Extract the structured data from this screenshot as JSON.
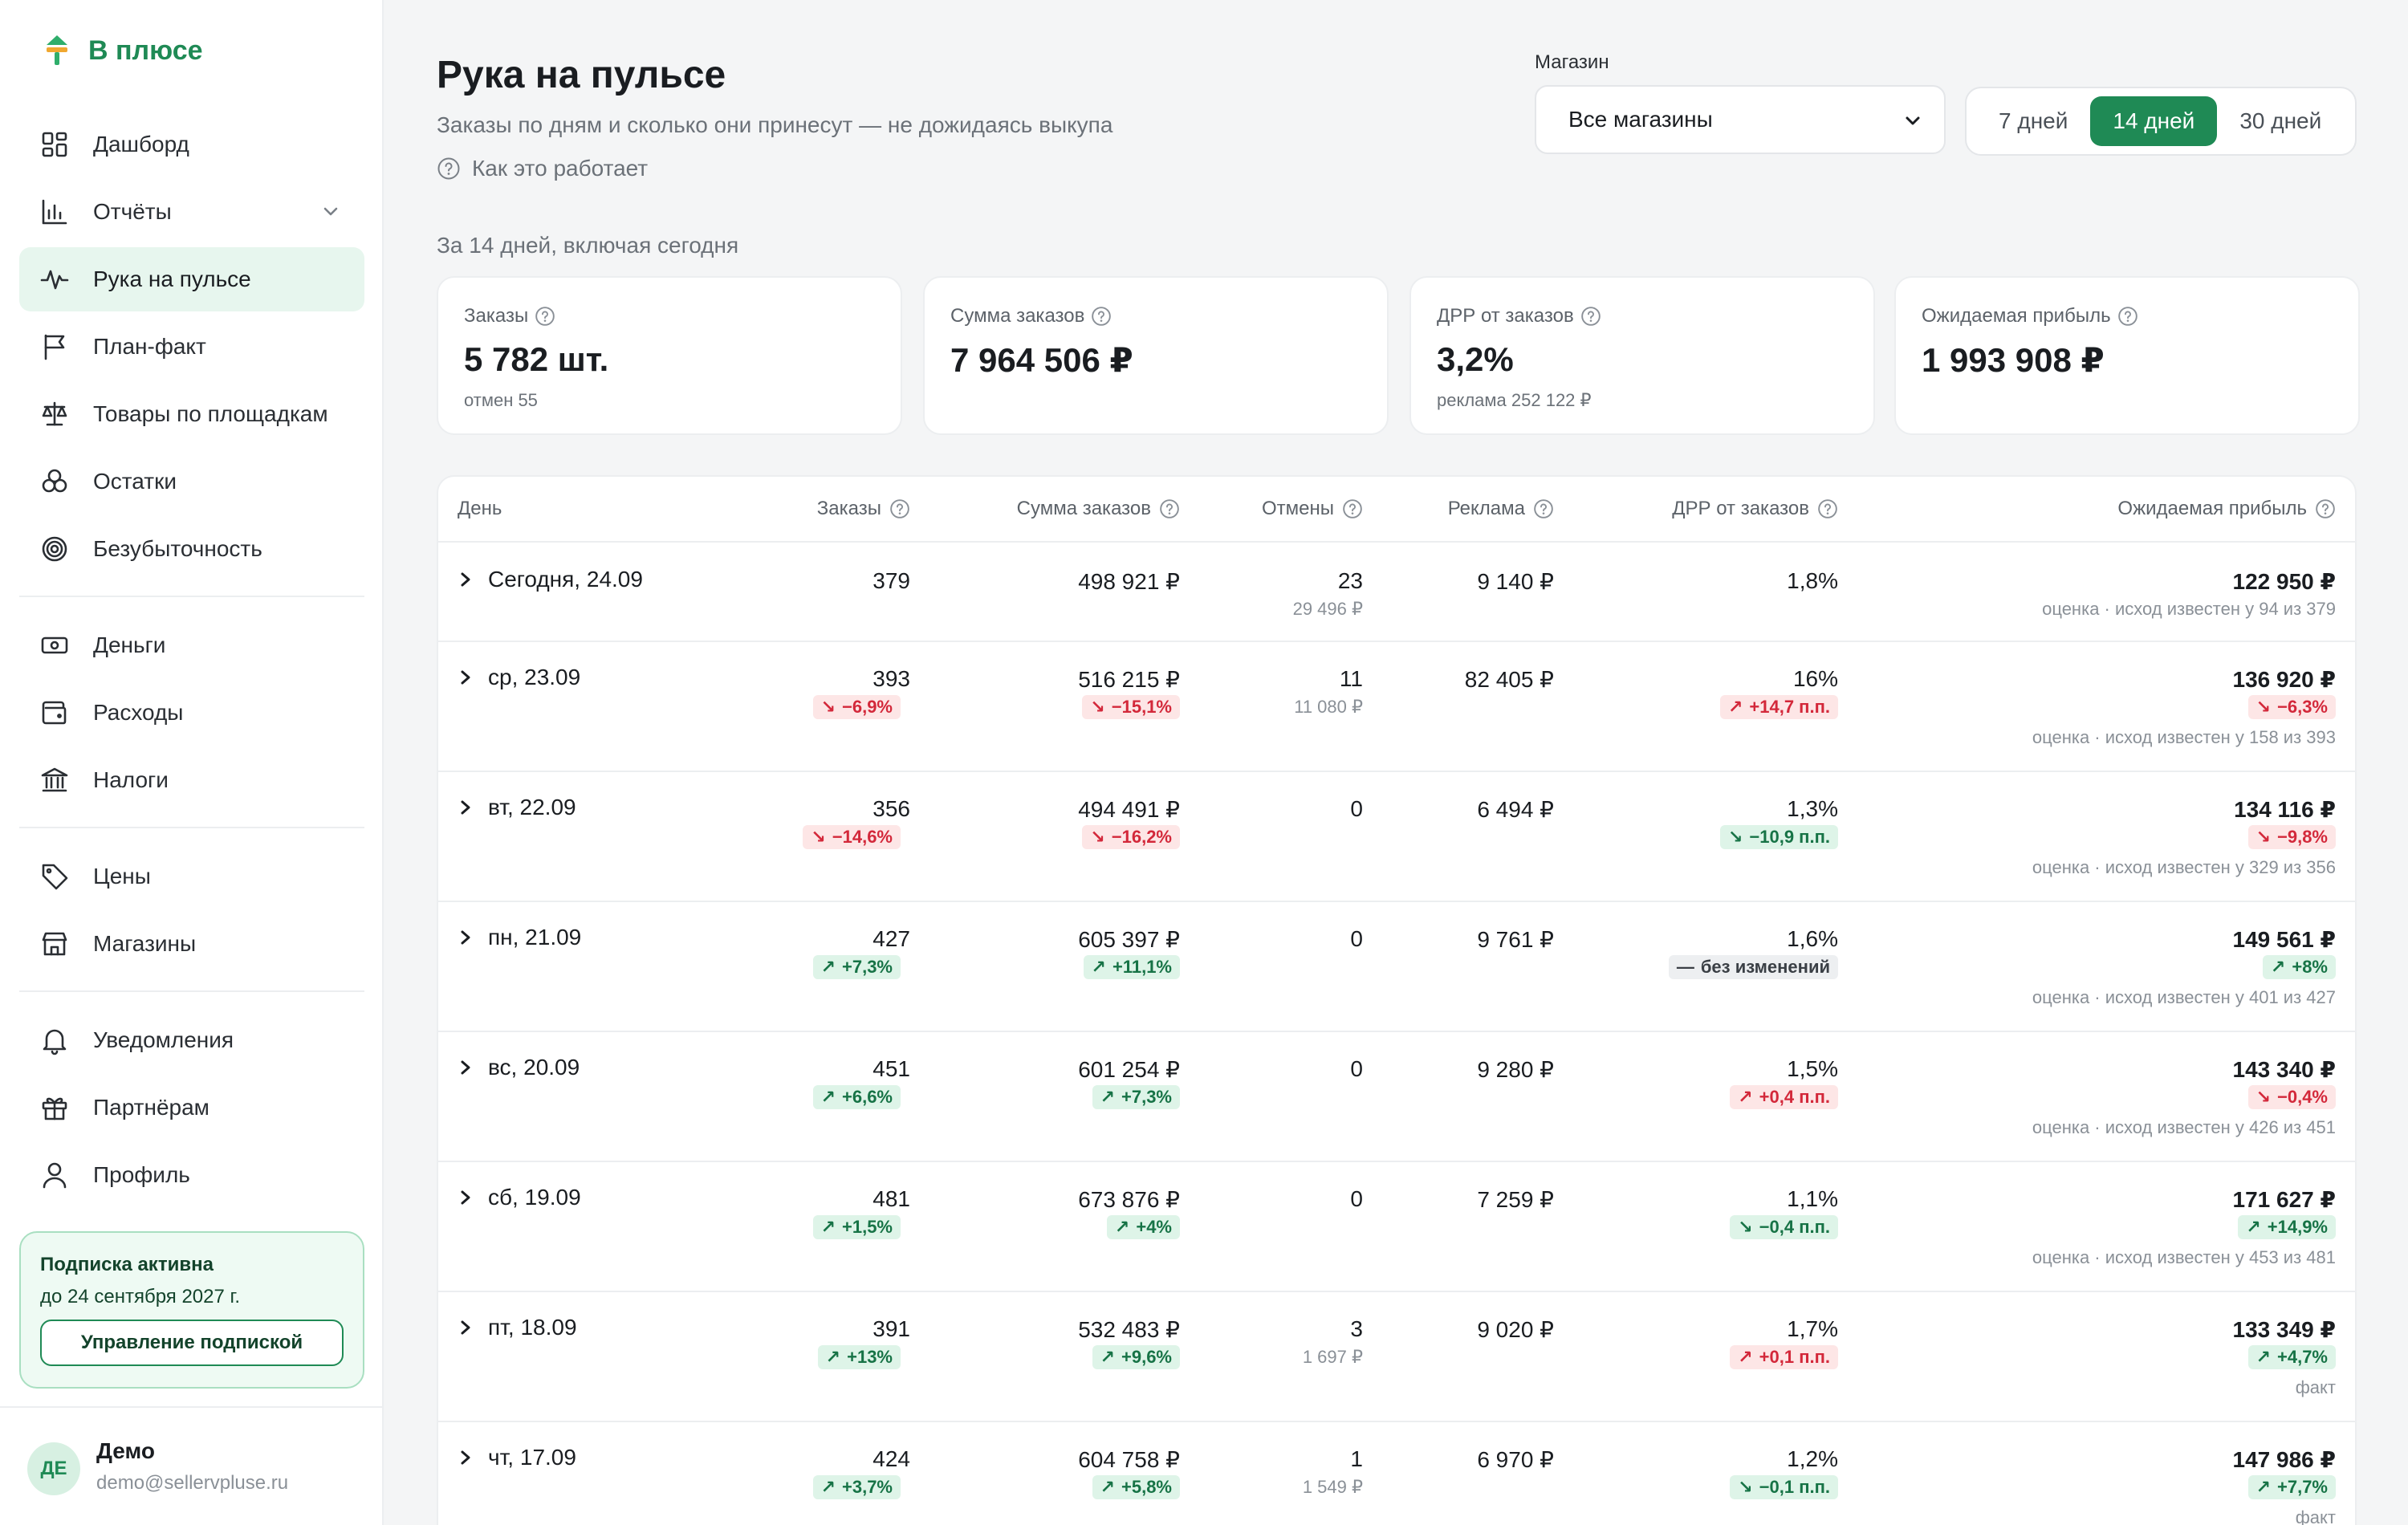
{
  "app": {
    "logo_text": "В плюсе"
  },
  "sidebar": {
    "items": [
      {
        "label": "Дашборд",
        "icon": "dashboard-icon"
      },
      {
        "label": "Отчёты",
        "icon": "bar-chart-icon",
        "has_chevron": true
      },
      {
        "label": "Рука на пульсе",
        "icon": "pulse-icon",
        "active": true
      },
      {
        "label": "План-факт",
        "icon": "flag-icon"
      },
      {
        "label": "Товары по площадкам",
        "icon": "scales-icon"
      },
      {
        "label": "Остатки",
        "icon": "boxes-icon"
      },
      {
        "label": "Безубыточность",
        "icon": "target-icon"
      },
      {
        "label": "Деньги",
        "icon": "cash-icon"
      },
      {
        "label": "Расходы",
        "icon": "wallet-icon"
      },
      {
        "label": "Налоги",
        "icon": "bank-icon"
      },
      {
        "label": "Цены",
        "icon": "tag-icon"
      },
      {
        "label": "Магазины",
        "icon": "store-icon"
      },
      {
        "label": "Уведомления",
        "icon": "bell-icon"
      },
      {
        "label": "Партнёрам",
        "icon": "gift-icon"
      },
      {
        "label": "Профиль",
        "icon": "user-icon"
      }
    ],
    "subscription": {
      "title": "Подписка активна",
      "until": "до 24 сентября 2027 г.",
      "button": "Управление подпиской"
    },
    "user": {
      "initials": "ДЕ",
      "name": "Демо",
      "email": "demo@sellervpluse.ru"
    }
  },
  "header": {
    "title": "Рука на пульсе",
    "subtitle": "Заказы по дням и сколько они принесут — не дожидаясь выкупа",
    "howto": "Как это работает",
    "store_label": "Магазин",
    "store_value": "Все магазины",
    "periods": [
      "7 дней",
      "14 дней",
      "30 дней"
    ],
    "active_period": "14 дней",
    "range_caption": "За 14 дней, включая сегодня"
  },
  "kpis": [
    {
      "label": "Заказы",
      "value": "5 782 шт.",
      "note": "отмен 55"
    },
    {
      "label": "Сумма заказов",
      "value": "7 964 506 ₽",
      "note": ""
    },
    {
      "label": "ДРР от заказов",
      "value": "3,2%",
      "note": "реклама 252 122 ₽"
    },
    {
      "label": "Ожидаемая прибыль",
      "value": "1 993 908 ₽",
      "note": ""
    }
  ],
  "table": {
    "headers": {
      "day": "День",
      "orders": "Заказы",
      "sum": "Сумма заказов",
      "cancels": "Отмены",
      "ads": "Реклама",
      "drr": "ДРР от заказов",
      "profit": "Ожидаемая прибыль"
    },
    "rows": [
      {
        "day": "Сегодня, 24.09",
        "orders": "379",
        "orders_d": null,
        "sum": "498 921 ₽",
        "sum_d": null,
        "cancels": "23",
        "cancels_sum": "29 496 ₽",
        "ads": "9 140 ₽",
        "drr": "1,8%",
        "drr_d": null,
        "profit": "122 950 ₽",
        "profit_d": null,
        "profit_note": "оценка · исход известен у 94 из 379"
      },
      {
        "day": "ср, 23.09",
        "orders": "393",
        "orders_d": {
          "text": "−6,9%",
          "dir": "down",
          "tone": "bad"
        },
        "sum": "516 215 ₽",
        "sum_d": {
          "text": "−15,1%",
          "dir": "down",
          "tone": "bad"
        },
        "cancels": "11",
        "cancels_sum": "11 080 ₽",
        "ads": "82 405 ₽",
        "drr": "16%",
        "drr_d": {
          "text": "+14,7 п.п.",
          "dir": "up",
          "tone": "bad"
        },
        "profit": "136 920 ₽",
        "profit_d": {
          "text": "−6,3%",
          "dir": "down",
          "tone": "bad"
        },
        "profit_note": "оценка · исход известен у 158 из 393"
      },
      {
        "day": "вт, 22.09",
        "orders": "356",
        "orders_d": {
          "text": "−14,6%",
          "dir": "down",
          "tone": "bad"
        },
        "sum": "494 491 ₽",
        "sum_d": {
          "text": "−16,2%",
          "dir": "down",
          "tone": "bad"
        },
        "cancels": "0",
        "cancels_sum": "",
        "ads": "6 494 ₽",
        "drr": "1,3%",
        "drr_d": {
          "text": "−10,9 п.п.",
          "dir": "down",
          "tone": "good"
        },
        "profit": "134 116 ₽",
        "profit_d": {
          "text": "−9,8%",
          "dir": "down",
          "tone": "bad"
        },
        "profit_note": "оценка · исход известен у 329 из 356"
      },
      {
        "day": "пн, 21.09",
        "orders": "427",
        "orders_d": {
          "text": "+7,3%",
          "dir": "up",
          "tone": "good"
        },
        "sum": "605 397 ₽",
        "sum_d": {
          "text": "+11,1%",
          "dir": "up",
          "tone": "good"
        },
        "cancels": "0",
        "cancels_sum": "",
        "ads": "9 761 ₽",
        "drr": "1,6%",
        "drr_d": {
          "text": "без изменений",
          "dir": "flat",
          "tone": "neutral"
        },
        "profit": "149 561 ₽",
        "profit_d": {
          "text": "+8%",
          "dir": "up",
          "tone": "good"
        },
        "profit_note": "оценка · исход известен у 401 из 427"
      },
      {
        "day": "вс, 20.09",
        "orders": "451",
        "orders_d": {
          "text": "+6,6%",
          "dir": "up",
          "tone": "good"
        },
        "sum": "601 254 ₽",
        "sum_d": {
          "text": "+7,3%",
          "dir": "up",
          "tone": "good"
        },
        "cancels": "0",
        "cancels_sum": "",
        "ads": "9 280 ₽",
        "drr": "1,5%",
        "drr_d": {
          "text": "+0,4 п.п.",
          "dir": "up",
          "tone": "bad"
        },
        "profit": "143 340 ₽",
        "profit_d": {
          "text": "−0,4%",
          "dir": "down",
          "tone": "bad"
        },
        "profit_note": "оценка · исход известен у 426 из 451"
      },
      {
        "day": "сб, 19.09",
        "orders": "481",
        "orders_d": {
          "text": "+1,5%",
          "dir": "up",
          "tone": "good"
        },
        "sum": "673 876 ₽",
        "sum_d": {
          "text": "+4%",
          "dir": "up",
          "tone": "good"
        },
        "cancels": "0",
        "cancels_sum": "",
        "ads": "7 259 ₽",
        "drr": "1,1%",
        "drr_d": {
          "text": "−0,4 п.п.",
          "dir": "down",
          "tone": "good"
        },
        "profit": "171 627 ₽",
        "profit_d": {
          "text": "+14,9%",
          "dir": "up",
          "tone": "good"
        },
        "profit_note": "оценка · исход известен у 453 из 481"
      },
      {
        "day": "пт, 18.09",
        "orders": "391",
        "orders_d": {
          "text": "+13%",
          "dir": "up",
          "tone": "good"
        },
        "sum": "532 483 ₽",
        "sum_d": {
          "text": "+9,6%",
          "dir": "up",
          "tone": "good"
        },
        "cancels": "3",
        "cancels_sum": "1 697 ₽",
        "ads": "9 020 ₽",
        "drr": "1,7%",
        "drr_d": {
          "text": "+0,1 п.п.",
          "dir": "up",
          "tone": "bad"
        },
        "profit": "133 349 ₽",
        "profit_d": {
          "text": "+4,7%",
          "dir": "up",
          "tone": "good"
        },
        "profit_note": "факт"
      },
      {
        "day": "чт, 17.09",
        "orders": "424",
        "orders_d": {
          "text": "+3,7%",
          "dir": "up",
          "tone": "good"
        },
        "sum": "604 758 ₽",
        "sum_d": {
          "text": "+5,8%",
          "dir": "up",
          "tone": "good"
        },
        "cancels": "1",
        "cancels_sum": "1 549 ₽",
        "ads": "6 970 ₽",
        "drr": "1,2%",
        "drr_d": {
          "text": "−0,1 п.п.",
          "dir": "down",
          "tone": "good"
        },
        "profit": "147 986 ₽",
        "profit_d": {
          "text": "+7,7%",
          "dir": "up",
          "tone": "good"
        },
        "profit_note": "факт"
      }
    ]
  },
  "colors": {
    "accent": "#1f8a55",
    "good": "#177346",
    "bad": "#d3283a"
  }
}
